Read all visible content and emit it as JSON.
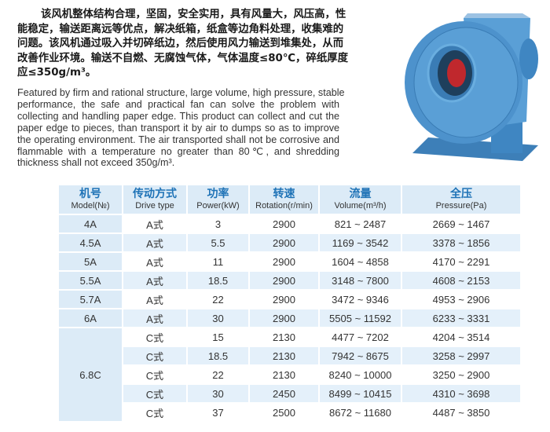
{
  "intro_zh": [
    "该风机整体结构合理，坚固，安全实用，具有风量大，风压高，性",
    "能稳定，输送距离远等优点，解决纸箱，纸盒等边角料处理，收集难的",
    "问题。该风机通过吸入并切碎纸边，然后使用风力输送到堆集处，从而",
    "改善作业环境。输送不自燃、无腐蚀气体，气体温度≤80℃，碎纸厚度",
    "应≤350g/m³。"
  ],
  "intro_en": [
    "Featured by firm and rational structure, large volume, high pressure, stable",
    "performance, the safe and practical fan can solve the problem with",
    "collecting and handling paper edge. This product can collect and cut the",
    "paper edge to pieces, than transport it by air to dumps so as to improve",
    "the operating environment. The air transported shall not be corrosive and",
    "flammable with a temperature no greater than 80℃, and shredding",
    "thickness shall not exceed 350g/m³."
  ],
  "colors": {
    "header_text": "#1f73b7",
    "header_bg": "#dcebf7",
    "row_shade": "#e4f0fa",
    "fan": "#4d92cc"
  },
  "table": {
    "headers": [
      {
        "zh": "机号",
        "en": "Model(№)"
      },
      {
        "zh": "传动方式",
        "en": "Drive type"
      },
      {
        "zh": "功率",
        "en": "Power(kW)"
      },
      {
        "zh": "转速",
        "en": "Rotation(r/min)"
      },
      {
        "zh": "流量",
        "en": "Volume(m³/h)"
      },
      {
        "zh": "全压",
        "en": "Pressure(Pa)"
      }
    ],
    "rows": [
      {
        "model": "4A",
        "drive": "A式",
        "power": "3",
        "rotation": "2900",
        "volume": "821 ~ 2487",
        "pressure": "2669 ~ 1467"
      },
      {
        "model": "4.5A",
        "drive": "A式",
        "power": "5.5",
        "rotation": "2900",
        "volume": "1169 ~ 3542",
        "pressure": "3378 ~ 1856"
      },
      {
        "model": "5A",
        "drive": "A式",
        "power": "11",
        "rotation": "2900",
        "volume": "1604 ~ 4858",
        "pressure": "4170 ~ 2291"
      },
      {
        "model": "5.5A",
        "drive": "A式",
        "power": "18.5",
        "rotation": "2900",
        "volume": "3148 ~ 7800",
        "pressure": "4608 ~ 2153"
      },
      {
        "model": "5.7A",
        "drive": "A式",
        "power": "22",
        "rotation": "2900",
        "volume": "3472 ~ 9346",
        "pressure": "4953 ~ 2906"
      },
      {
        "model": "6A",
        "drive": "A式",
        "power": "30",
        "rotation": "2900",
        "volume": "5505 ~ 11592",
        "pressure": "6233 ~ 3331"
      },
      {
        "model": "6.8C",
        "drive": "C式",
        "power": "15",
        "rotation": "2130",
        "volume": "4477 ~ 7202",
        "pressure": "4204 ~ 3514"
      },
      {
        "drive": "C式",
        "power": "18.5",
        "rotation": "2130",
        "volume": "7942 ~ 8675",
        "pressure": "3258 ~ 2997"
      },
      {
        "drive": "C式",
        "power": "22",
        "rotation": "2130",
        "volume": "8240 ~ 10000",
        "pressure": "3250 ~ 2900"
      },
      {
        "drive": "C式",
        "power": "30",
        "rotation": "2450",
        "volume": "8499 ~ 10415",
        "pressure": "4310 ~ 3698"
      },
      {
        "drive": "C式",
        "power": "37",
        "rotation": "2500",
        "volume": "8672 ~ 11680",
        "pressure": "4487 ~ 3850"
      }
    ]
  }
}
